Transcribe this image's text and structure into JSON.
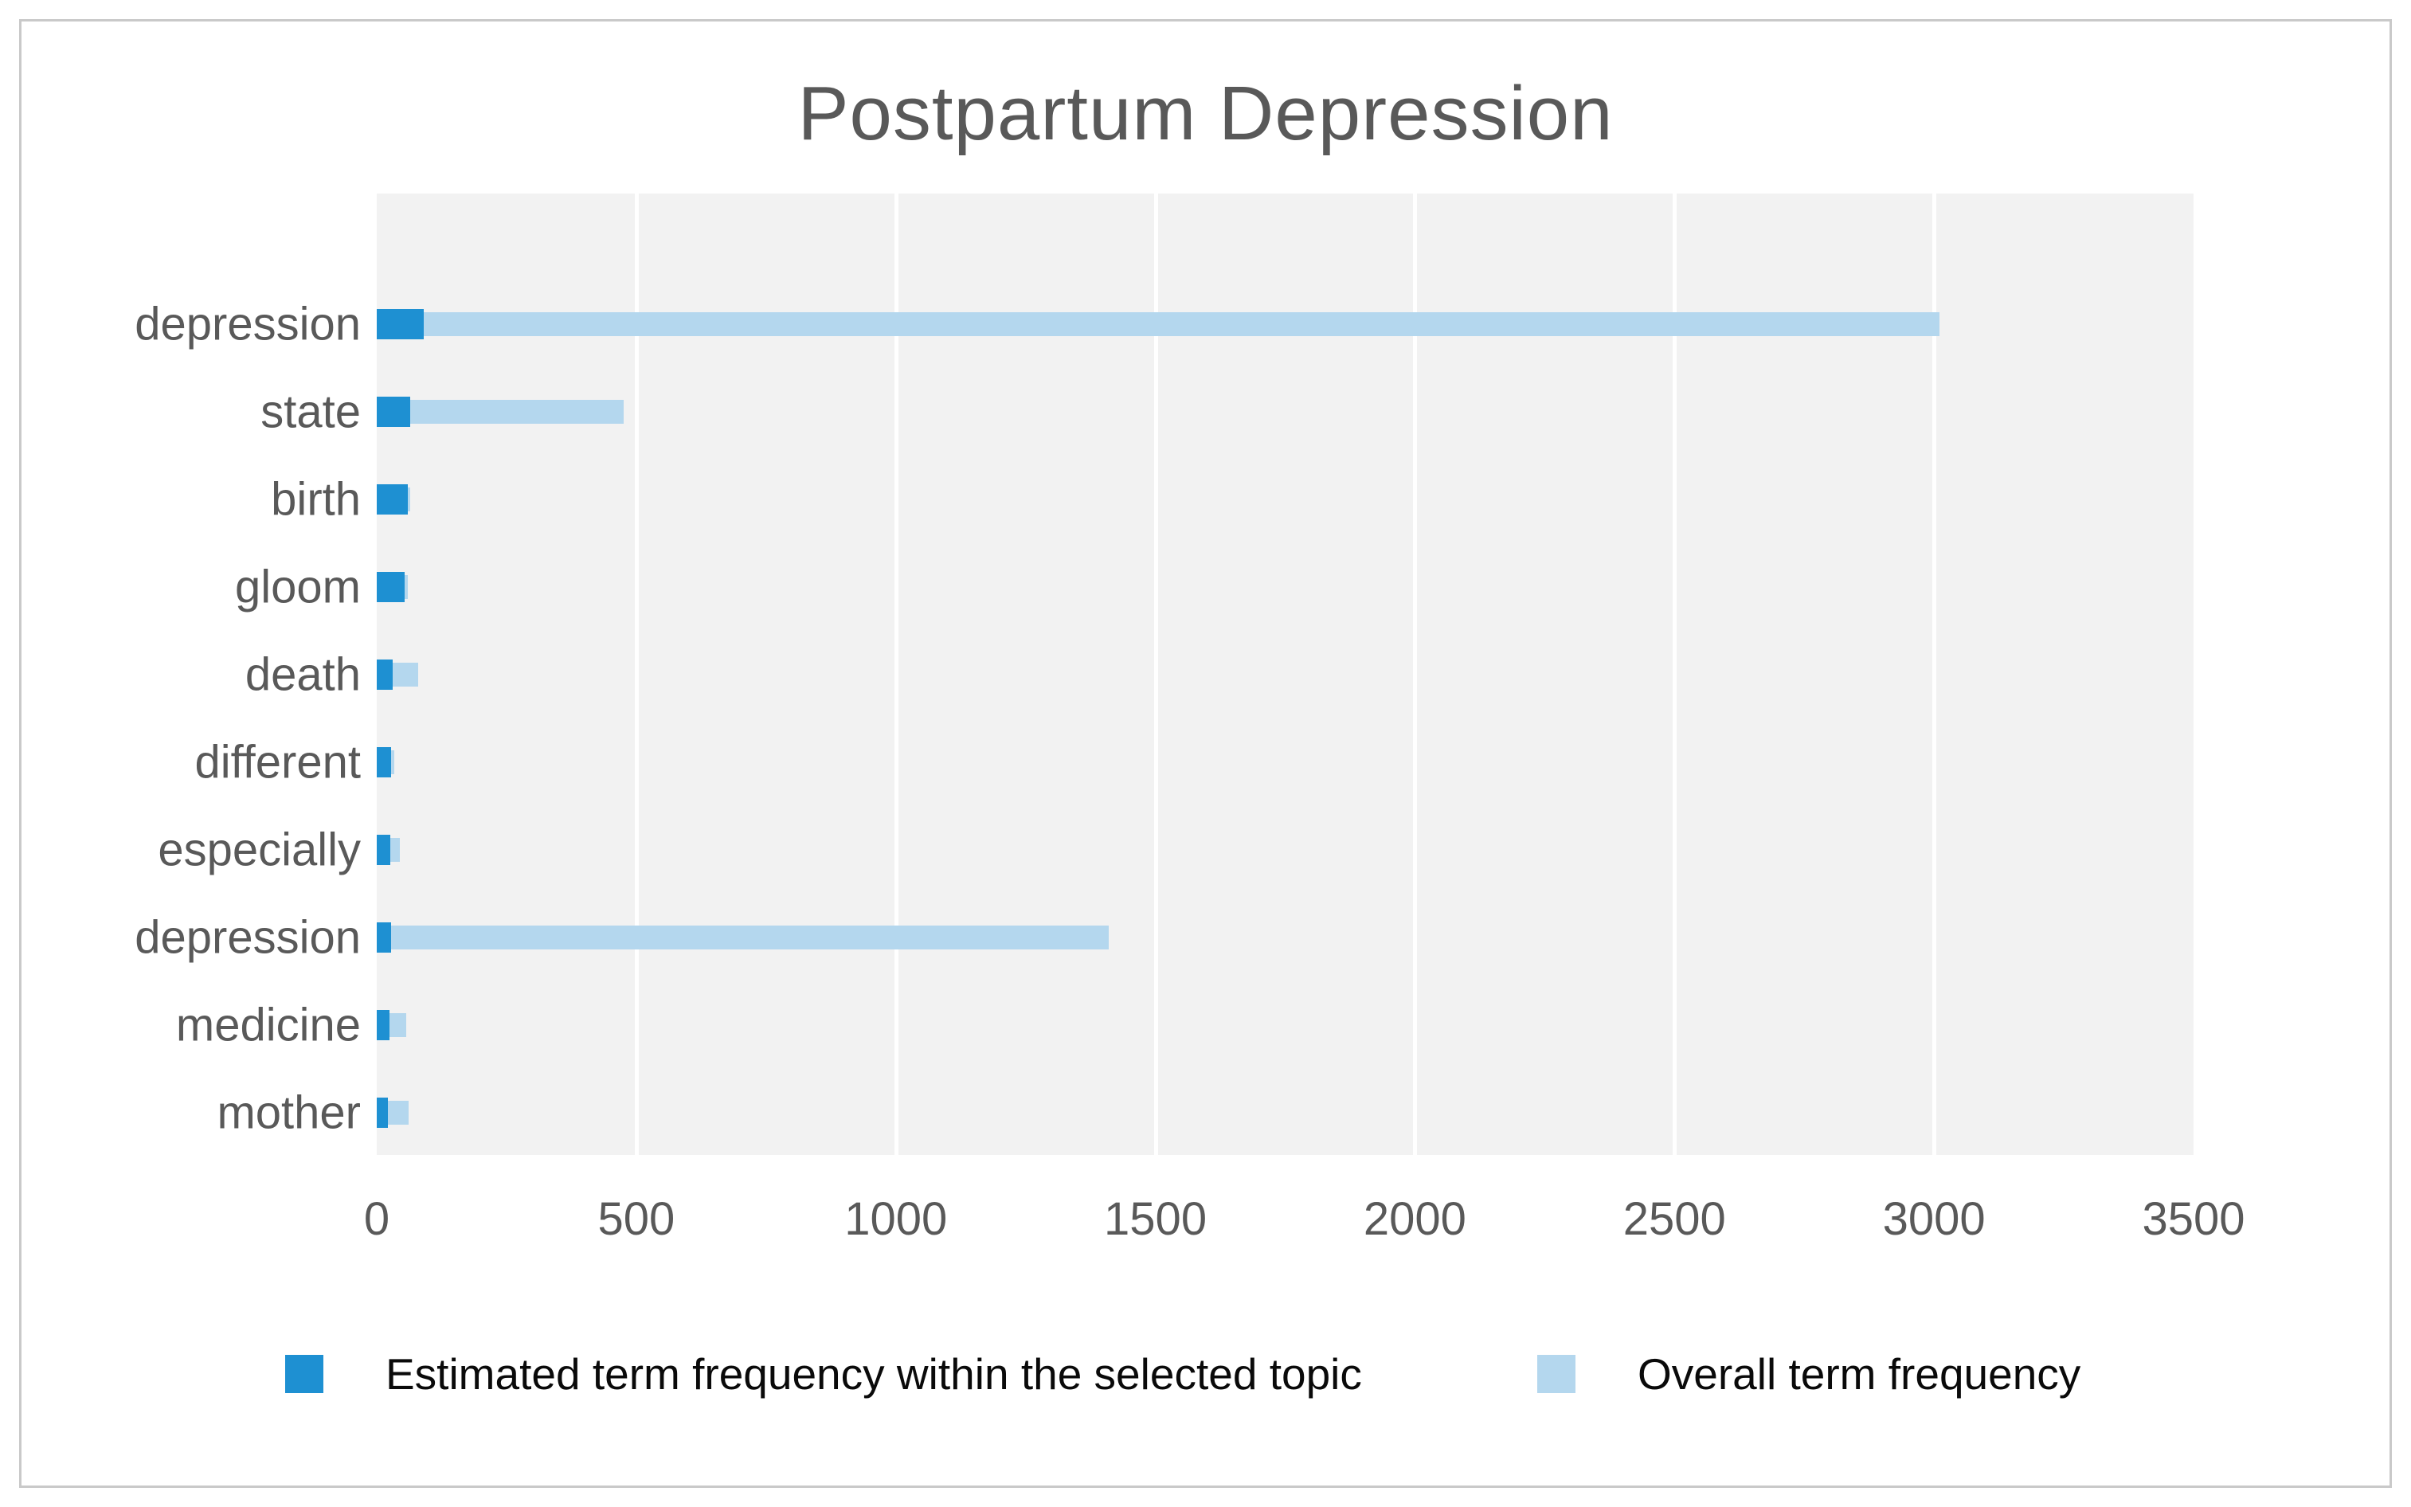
{
  "window": {
    "border_color": "#c9c9c9",
    "background_color": "#ffffff"
  },
  "colors": {
    "topic_bar": "#1e90d2",
    "overall_bar": "#b4d7ee",
    "plot_background": "#f2f2f2",
    "gridline": "#ffffff",
    "axis_text": "#595959",
    "legend_text": "#0a0a0a"
  },
  "chart_data": {
    "type": "bar",
    "orientation": "horizontal",
    "title": "Postpartum Depression",
    "categories": [
      "depression",
      "state",
      "birth",
      "gloom",
      "death",
      "different",
      "especially",
      "depression",
      "medicine",
      "mother"
    ],
    "series": [
      {
        "name": "Estimated term frequency within the selected topic",
        "color": "#1e90d2",
        "values": [
          90,
          65,
          60,
          54,
          30,
          28,
          26,
          28,
          25,
          22
        ]
      },
      {
        "name": "Overall term frequency",
        "color": "#b4d7ee",
        "values": [
          3010,
          475,
          65,
          60,
          80,
          34,
          45,
          1410,
          57,
          62
        ]
      }
    ],
    "xlim": [
      0,
      3500
    ],
    "x_ticks": [
      0,
      500,
      1000,
      1500,
      2000,
      2500,
      3000,
      3500
    ],
    "xlabel": "",
    "ylabel": "",
    "grid": "vertical white gridlines on gray panel",
    "legend_position": "bottom"
  }
}
